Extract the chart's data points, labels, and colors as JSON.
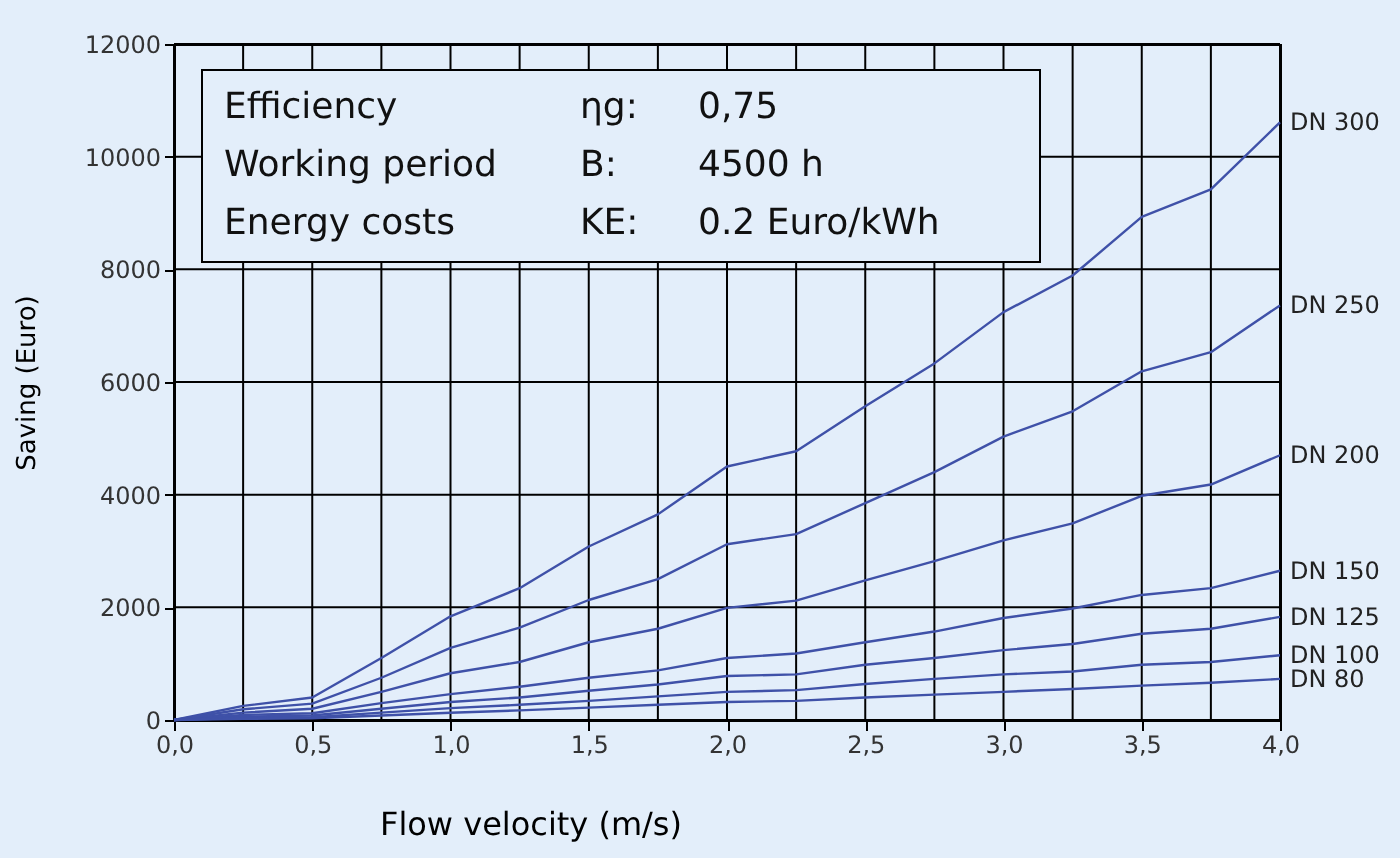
{
  "chart_data": {
    "type": "line",
    "xlabel": "Flow velocity (m/s)",
    "ylabel": "Saving (Euro)",
    "x": [
      0,
      0.25,
      0.5,
      0.75,
      1.0,
      1.25,
      1.5,
      1.75,
      2.0,
      2.25,
      2.5,
      2.75,
      3.0,
      3.25,
      3.5,
      3.75,
      4.0
    ],
    "series": [
      {
        "name": "DN 300",
        "color": "#3f51a8",
        "values": [
          0,
          250,
          400,
          1100,
          1840,
          2340,
          3080,
          3650,
          4500,
          4770,
          5570,
          6330,
          7240,
          7890,
          8930,
          9420,
          10610
        ]
      },
      {
        "name": "DN 250",
        "color": "#3f51a8",
        "values": [
          0,
          190,
          290,
          750,
          1280,
          1640,
          2130,
          2500,
          3120,
          3300,
          3850,
          4400,
          5030,
          5480,
          6190,
          6530,
          7360
        ]
      },
      {
        "name": "DN 200",
        "color": "#3f51a8",
        "values": [
          0,
          130,
          200,
          500,
          830,
          1030,
          1380,
          1620,
          1990,
          2120,
          2480,
          2820,
          3190,
          3490,
          3980,
          4180,
          4700
        ]
      },
      {
        "name": "DN 150",
        "color": "#3f51a8",
        "values": [
          0,
          90,
          120,
          300,
          460,
          590,
          750,
          880,
          1100,
          1180,
          1380,
          1570,
          1810,
          1980,
          2220,
          2340,
          2650
        ]
      },
      {
        "name": "DN 125",
        "color": "#3f51a8",
        "values": [
          0,
          60,
          80,
          200,
          320,
          400,
          520,
          630,
          780,
          810,
          980,
          1100,
          1240,
          1350,
          1530,
          1620,
          1830
        ]
      },
      {
        "name": "DN 100",
        "color": "#3f51a8",
        "values": [
          0,
          40,
          50,
          130,
          210,
          270,
          340,
          420,
          500,
          530,
          640,
          730,
          810,
          860,
          980,
          1030,
          1150
        ]
      },
      {
        "name": "DN 80",
        "color": "#3f51a8",
        "values": [
          0,
          20,
          30,
          80,
          130,
          170,
          220,
          270,
          320,
          340,
          400,
          450,
          500,
          550,
          610,
          660,
          730
        ]
      }
    ],
    "xlim": [
      0,
      4
    ],
    "ylim": [
      0,
      12000
    ],
    "xticks": [
      {
        "value": 0,
        "label": "0,0"
      },
      {
        "value": 0.25,
        "label": null
      },
      {
        "value": 0.5,
        "label": "0,5"
      },
      {
        "value": 0.75,
        "label": null
      },
      {
        "value": 1,
        "label": "1,0"
      },
      {
        "value": 1.25,
        "label": null
      },
      {
        "value": 1.5,
        "label": "1,5"
      },
      {
        "value": 1.75,
        "label": null
      },
      {
        "value": 2,
        "label": "2,0"
      },
      {
        "value": 2.25,
        "label": null
      },
      {
        "value": 2.5,
        "label": "2,5"
      },
      {
        "value": 2.75,
        "label": null
      },
      {
        "value": 3,
        "label": "3,0"
      },
      {
        "value": 3.25,
        "label": null
      },
      {
        "value": 3.5,
        "label": "3,5"
      },
      {
        "value": 3.75,
        "label": null
      },
      {
        "value": 4,
        "label": "4,0"
      }
    ],
    "yticks": [
      0,
      2000,
      4000,
      6000,
      8000,
      10000,
      12000
    ],
    "grid": true,
    "legend": false,
    "marker": "none",
    "line_style": "solid",
    "annotations": [
      "Efficiency",
      "ηg:",
      "0,75",
      "Working period",
      "B:",
      "4500 h",
      "Energy costs",
      "KE:",
      "0.2 Euro/kWh"
    ]
  }
}
